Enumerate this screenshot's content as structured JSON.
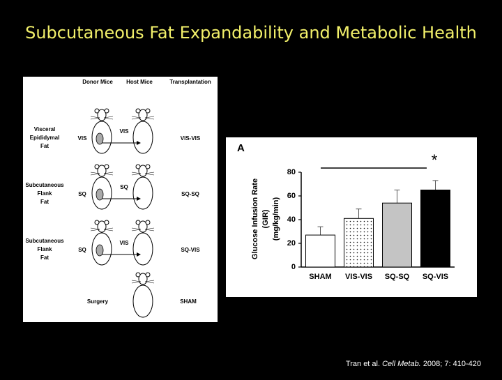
{
  "title": "Subcutaneous Fat Expandability and Metabolic Health",
  "diagram": {
    "headers": [
      "Donor Mice",
      "Host Mice",
      "Transplantation"
    ],
    "rows": [
      {
        "label": [
          "Visceral",
          "Epididymal",
          "Fat"
        ],
        "donor": "VIS",
        "host": "VIS",
        "result": "VIS-VIS"
      },
      {
        "label": [
          "Subcutaneous",
          "Flank",
          "Fat"
        ],
        "donor": "SQ",
        "host": "SQ",
        "result": "SQ-SQ"
      },
      {
        "label": [
          "Subcutaneous",
          "Flank",
          "Fat"
        ],
        "donor": "SQ",
        "host": "VIS",
        "result": "SQ-VIS"
      }
    ],
    "surgery": "Surgery",
    "sham": "SHAM"
  },
  "chart_data": {
    "type": "bar",
    "panel_label": "A",
    "y_label": [
      "Glucose Infusion Rate",
      "(GIR)",
      "(mg/kg/min)"
    ],
    "categories": [
      "SHAM",
      "VIS-VIS",
      "SQ-SQ",
      "SQ-VIS"
    ],
    "values": [
      27,
      41,
      54,
      65
    ],
    "errors": [
      7,
      8,
      11,
      8
    ],
    "colors": [
      "#ffffff",
      "#ffffff",
      "#c4c4c4",
      "#000000"
    ],
    "dotted": [
      false,
      true,
      false,
      false
    ],
    "ylim": [
      0,
      80
    ],
    "yticks": [
      0,
      20,
      40,
      60,
      80
    ],
    "annotation": "*"
  },
  "citation": {
    "authors": "Tran et al.",
    "journal": "Cell Metab.",
    "details": "2008; 7: 410-420"
  }
}
